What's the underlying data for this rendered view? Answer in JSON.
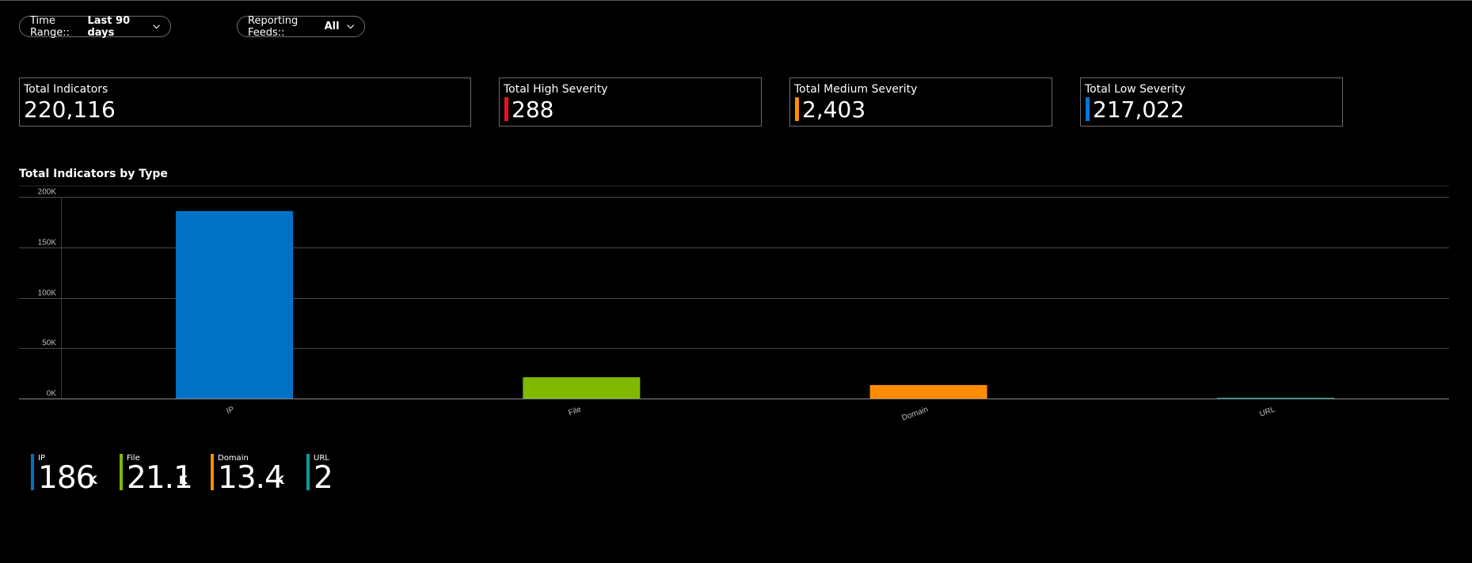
{
  "filters": {
    "time_range": {
      "label": "Time Range::",
      "value": "Last 90 days"
    },
    "feeds": {
      "label": "Reporting Feeds::",
      "value": "All"
    }
  },
  "kpis": {
    "total": {
      "label": "Total Indicators",
      "value": "220,116"
    },
    "high": {
      "label": "Total High Severity",
      "value": "288",
      "color": "#e81123"
    },
    "medium": {
      "label": "Total Medium Severity",
      "value": "2,403",
      "color": "#ff8c00"
    },
    "low": {
      "label": "Total Low Severity",
      "value": "217,022",
      "color": "#0078d4"
    }
  },
  "chart_section": {
    "title": "Total Indicators by Type"
  },
  "chart_data": {
    "type": "bar",
    "title": "Total Indicators by Type",
    "categories": [
      "IP",
      "File",
      "Domain",
      "URL"
    ],
    "values": [
      186000,
      21100,
      13400,
      2
    ],
    "colors": [
      "#0072c6",
      "#7fba00",
      "#ff8c00",
      "#00a0a0"
    ],
    "ylim": [
      0,
      200000
    ],
    "yticks": [
      0,
      50000,
      100000,
      150000,
      200000
    ],
    "ytick_labels": [
      "0K",
      "50K",
      "100K",
      "150K",
      "200K"
    ],
    "grid": true,
    "xlabel": "",
    "ylabel": ""
  },
  "legend": {
    "items": [
      {
        "name": "IP",
        "value": "186",
        "unit": "K",
        "color": "#0072c6"
      },
      {
        "name": "File",
        "value": "21.1",
        "unit": "K",
        "color": "#7fba00"
      },
      {
        "name": "Domain",
        "value": "13.4",
        "unit": "K",
        "color": "#ff8c00"
      },
      {
        "name": "URL",
        "value": "2",
        "unit": "",
        "color": "#00a0a0"
      }
    ]
  }
}
